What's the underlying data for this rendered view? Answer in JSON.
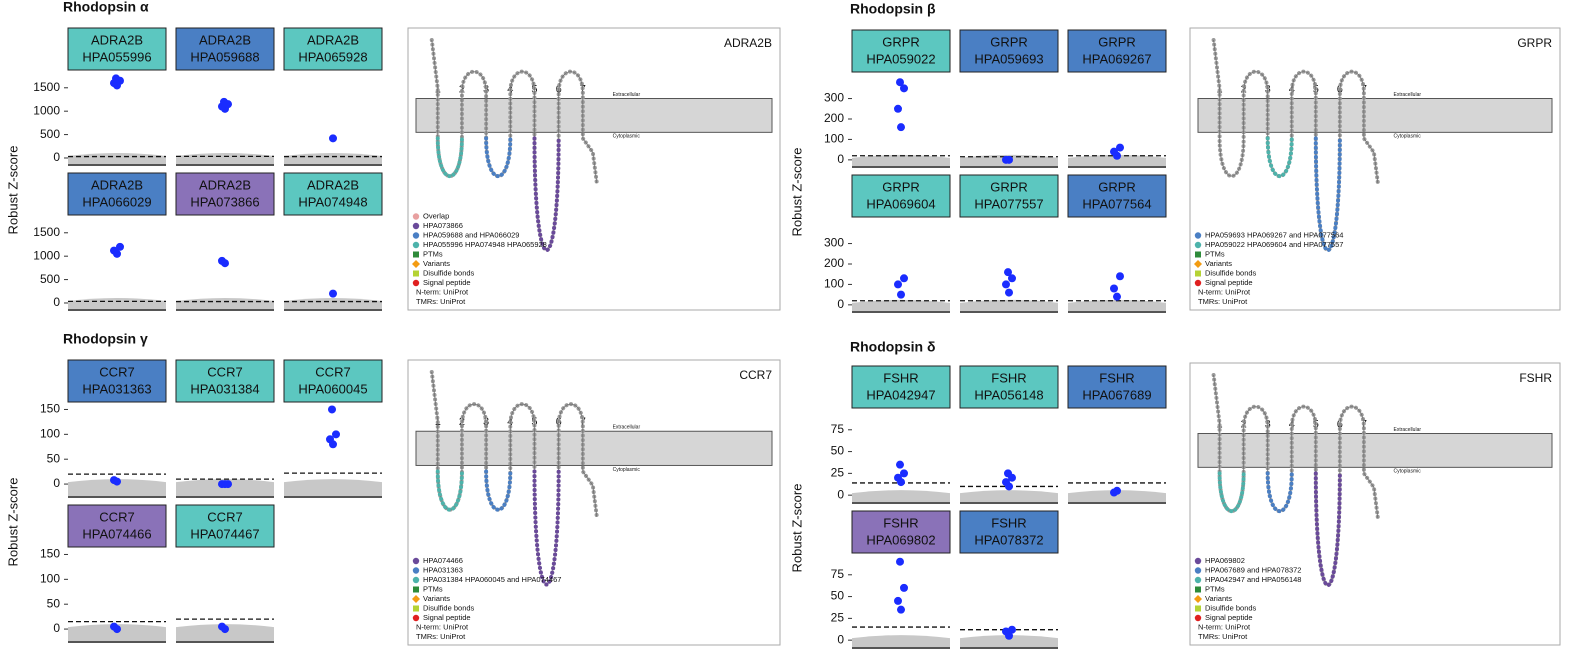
{
  "panels": [
    {
      "title": "Rhodopsin α",
      "y_label": "Robust Z-score",
      "ylim": [
        -150,
        1880
      ],
      "yticks": [
        0,
        500,
        1000,
        1500
      ],
      "antibodies": [
        {
          "gene": "ADRA2B",
          "id": "HPA055996",
          "color": "#5cc7c0",
          "points": [
            1550,
            1600,
            1650,
            1700
          ],
          "threshold": 30
        },
        {
          "gene": "ADRA2B",
          "id": "HPA059688",
          "color": "#4a7fc4",
          "points": [
            1050,
            1100,
            1150,
            1200
          ],
          "threshold": 35
        },
        {
          "gene": "ADRA2B",
          "id": "HPA065928",
          "color": "#5cc7c0",
          "points": [
            420
          ],
          "threshold": 30
        },
        {
          "gene": "ADRA2B",
          "id": "HPA066029",
          "color": "#4a7fc4",
          "points": [
            1050,
            1120,
            1200
          ],
          "threshold": 35
        },
        {
          "gene": "ADRA2B",
          "id": "HPA073866",
          "color": "#8a72b8",
          "points": [
            850,
            900
          ],
          "threshold": 30
        },
        {
          "gene": "ADRA2B",
          "id": "HPA074948",
          "color": "#5cc7c0",
          "points": [
            200
          ],
          "threshold": 30
        }
      ],
      "snake": {
        "gene": "ADRA2B",
        "tm_labels": [
          "1",
          "2",
          "3",
          "4",
          "5",
          "6",
          "7"
        ],
        "extracellular": "Extracellular",
        "cytoplasmic": "Cytoplasmic",
        "legend": [
          {
            "label": "Overlap",
            "color": "#e8a0a0"
          },
          {
            "label": "HPA073866",
            "color": "#6a4a9a"
          },
          {
            "label": "HPA059688 and HPA066029",
            "color": "#4a7fc4"
          },
          {
            "label": "HPA055996 HPA074948 HPA065928",
            "color": "#4db3ab"
          },
          {
            "label": "PTMs",
            "color": "#2e8b3a"
          },
          {
            "label": "Variants",
            "color": "#f39c12"
          },
          {
            "label": "Disulfide bonds",
            "color": "#b5d334"
          },
          {
            "label": "Signal peptide",
            "color": "#e02020"
          }
        ],
        "notes": [
          "N-term: UniProt",
          "TMRs: UniProt"
        ]
      }
    },
    {
      "title": "Rhodopsin β",
      "y_label": "Robust Z-score",
      "ylim": [
        -35,
        430
      ],
      "yticks": [
        0,
        100,
        200,
        300
      ],
      "antibodies": [
        {
          "gene": "GRPR",
          "id": "HPA059022",
          "color": "#5cc7c0",
          "points": [
            160,
            250,
            350,
            380
          ],
          "threshold": 20
        },
        {
          "gene": "GRPR",
          "id": "HPA059693",
          "color": "#4a7fc4",
          "points": [
            0,
            0
          ],
          "threshold": 15
        },
        {
          "gene": "GRPR",
          "id": "HPA069267",
          "color": "#4a7fc4",
          "points": [
            20,
            40,
            60
          ],
          "threshold": 20
        },
        {
          "gene": "GRPR",
          "id": "HPA069604",
          "color": "#5cc7c0",
          "points": [
            50,
            100,
            130
          ],
          "threshold": 20
        },
        {
          "gene": "GRPR",
          "id": "HPA077557",
          "color": "#5cc7c0",
          "points": [
            60,
            100,
            130,
            160
          ],
          "threshold": 20
        },
        {
          "gene": "GRPR",
          "id": "HPA077564",
          "color": "#4a7fc4",
          "points": [
            40,
            80,
            140
          ],
          "threshold": 20
        }
      ],
      "snake": {
        "gene": "GRPR",
        "tm_labels": [
          "1",
          "2",
          "3",
          "4",
          "5",
          "6",
          "7"
        ],
        "extracellular": "Extracellular",
        "cytoplasmic": "Cytoplasmic",
        "legend": [
          {
            "label": "HPA059693 HPA069267 and HPA077564",
            "color": "#4a7fc4"
          },
          {
            "label": "HPA059022 HPA069604 and HPA077557",
            "color": "#4db3ab"
          },
          {
            "label": "PTMs",
            "color": "#2e8b3a"
          },
          {
            "label": "Variants",
            "color": "#f39c12"
          },
          {
            "label": "Disulfide bonds",
            "color": "#b5d334"
          },
          {
            "label": "Signal peptide",
            "color": "#e02020"
          }
        ],
        "notes": [
          "N-term: UniProt",
          "TMRs: UniProt"
        ]
      }
    },
    {
      "title": "Rhodopsin γ",
      "y_label": "Robust Z-score",
      "ylim": [
        -26,
        165
      ],
      "yticks": [
        0,
        50,
        100,
        150
      ],
      "antibodies": [
        {
          "gene": "CCR7",
          "id": "HPA031363",
          "color": "#4a7fc4",
          "points": [
            5,
            8
          ],
          "threshold": 20
        },
        {
          "gene": "CCR7",
          "id": "HPA031384",
          "color": "#5cc7c0",
          "points": [
            0,
            0,
            0
          ],
          "threshold": 10
        },
        {
          "gene": "CCR7",
          "id": "HPA060045",
          "color": "#5cc7c0",
          "points": [
            80,
            90,
            100,
            150
          ],
          "threshold": 22
        },
        {
          "gene": "CCR7",
          "id": "HPA074466",
          "color": "#8a72b8",
          "points": [
            0,
            5
          ],
          "threshold": 15
        },
        {
          "gene": "CCR7",
          "id": "HPA074467",
          "color": "#5cc7c0",
          "points": [
            0,
            5
          ],
          "threshold": 20
        }
      ],
      "snake": {
        "gene": "CCR7",
        "tm_labels": [
          "1",
          "2",
          "3",
          "4",
          "5",
          "6",
          "7"
        ],
        "extracellular": "Extracellular",
        "cytoplasmic": "Cytoplasmic",
        "legend": [
          {
            "label": "HPA074466",
            "color": "#6a4a9a"
          },
          {
            "label": "HPA031363",
            "color": "#4a7fc4"
          },
          {
            "label": "HPA031384 HPA060045 and HPA074467",
            "color": "#4db3ab"
          },
          {
            "label": "PTMs",
            "color": "#2e8b3a"
          },
          {
            "label": "Variants",
            "color": "#f39c12"
          },
          {
            "label": "Disulfide bonds",
            "color": "#b5d334"
          },
          {
            "label": "Signal peptide",
            "color": "#e02020"
          }
        ],
        "notes": [
          "N-term: UniProt",
          "TMRs: UniProt"
        ]
      }
    },
    {
      "title": "Rhodopsin δ",
      "y_label": "Robust Z-score",
      "ylim": [
        -9,
        100
      ],
      "yticks": [
        0,
        25,
        50,
        75
      ],
      "antibodies": [
        {
          "gene": "FSHR",
          "id": "HPA042947",
          "color": "#5cc7c0",
          "points": [
            15,
            20,
            25,
            35
          ],
          "threshold": 14
        },
        {
          "gene": "FSHR",
          "id": "HPA056148",
          "color": "#5cc7c0",
          "points": [
            10,
            15,
            20,
            25
          ],
          "threshold": 10
        },
        {
          "gene": "FSHR",
          "id": "HPA067689",
          "color": "#4a7fc4",
          "points": [
            5,
            3
          ],
          "threshold": 14
        },
        {
          "gene": "FSHR",
          "id": "HPA069802",
          "color": "#8a72b8",
          "points": [
            35,
            45,
            60,
            90
          ],
          "threshold": 15
        },
        {
          "gene": "FSHR",
          "id": "HPA078372",
          "color": "#4a7fc4",
          "points": [
            5,
            10,
            12
          ],
          "threshold": 12
        }
      ],
      "snake": {
        "gene": "FSHR",
        "tm_labels": [
          "1",
          "2",
          "3",
          "4",
          "5",
          "6",
          "7"
        ],
        "extracellular": "Extracellular",
        "cytoplasmic": "Cytoplasmic",
        "legend": [
          {
            "label": "HPA069802",
            "color": "#6a4a9a"
          },
          {
            "label": "HPA067689 and HPA078372",
            "color": "#4a7fc4"
          },
          {
            "label": "HPA042947 and HPA056148",
            "color": "#4db3ab"
          },
          {
            "label": "PTMs",
            "color": "#2e8b3a"
          },
          {
            "label": "Variants",
            "color": "#f39c12"
          },
          {
            "label": "Disulfide bonds",
            "color": "#b5d334"
          },
          {
            "label": "Signal peptide",
            "color": "#e02020"
          }
        ],
        "notes": [
          "N-term: UniProt",
          "TMRs: UniProt"
        ]
      }
    }
  ]
}
